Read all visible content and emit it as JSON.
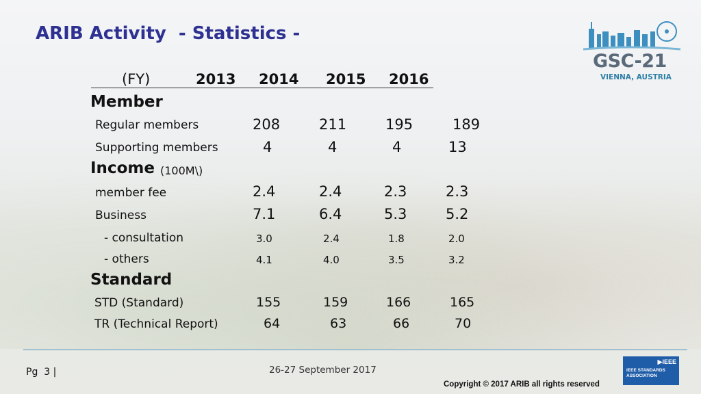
{
  "slide": {
    "title": "ARIB Activity  - Statistics -"
  },
  "logo": {
    "name": "GSC-21",
    "subtitle": "VIENNA, AUSTRIA"
  },
  "table": {
    "header": {
      "fy": "(FY)",
      "years": [
        "2013",
        "2014",
        "2015",
        "2016"
      ]
    },
    "sections": [
      {
        "title": "Member",
        "note": "",
        "rows": [
          {
            "label": "Regular members",
            "values": [
              "208",
              "211",
              "195",
              "189"
            ]
          },
          {
            "label": "Supporting members",
            "values": [
              "4",
              "4",
              "4",
              "13"
            ]
          }
        ]
      },
      {
        "title": "Income",
        "note": "(100M\\)",
        "rows": [
          {
            "label": "member fee",
            "values": [
              "2.4",
              "2.4",
              "2.3",
              "2.3"
            ]
          },
          {
            "label": "Business",
            "values": [
              "7.1",
              "6.4",
              "5.3",
              "5.2"
            ]
          },
          {
            "label": "- consultation",
            "values": [
              "3.0",
              "2.4",
              "1.8",
              "2.0"
            ]
          },
          {
            "label": "- others",
            "values": [
              "4.1",
              "4.0",
              "3.5",
              "3.2"
            ]
          }
        ]
      },
      {
        "title": "Standard",
        "note": "",
        "rows": [
          {
            "label": "STD (Standard)",
            "values": [
              "155",
              "159",
              "166",
              "165"
            ]
          },
          {
            "label": "TR (Technical Report)",
            "values": [
              "64",
              "63",
              "66",
              "70"
            ]
          }
        ]
      }
    ]
  },
  "footer": {
    "page": "Pg  3 |",
    "date": "26-27 September 2017",
    "copyright": "Copyright © 2017 ARIB all rights reserved",
    "ieee_mark": "▶IEEE",
    "ieee_text": "IEEE STANDARDS ASSOCIATION"
  }
}
